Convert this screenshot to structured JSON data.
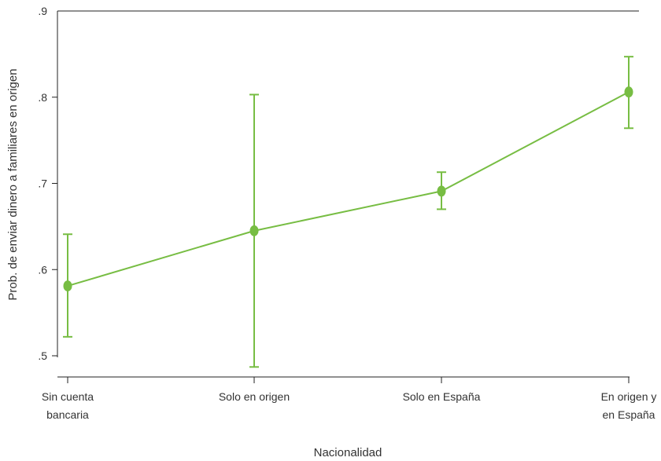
{
  "chart_data": {
    "type": "line",
    "title": "",
    "xlabel": "Nacionalidad",
    "ylabel": "Prob. de enviar dinero a familiares en origen",
    "categories": [
      [
        "Sin cuenta",
        "bancaria"
      ],
      [
        "Solo en origen"
      ],
      [
        "Solo en España"
      ],
      [
        "En origen y",
        "en España"
      ]
    ],
    "values": [
      0.581,
      0.645,
      0.691,
      0.806
    ],
    "ci_lower": [
      0.522,
      0.487,
      0.67,
      0.764
    ],
    "ci_upper": [
      0.641,
      0.803,
      0.713,
      0.847
    ],
    "ylim": [
      0.5,
      0.9
    ],
    "yticks": [
      0.5,
      0.6,
      0.7,
      0.8,
      0.9
    ],
    "ytick_labels": [
      ".5",
      ".6",
      ".7",
      ".8",
      ".9"
    ],
    "grid": false,
    "color": "#77bd43"
  }
}
